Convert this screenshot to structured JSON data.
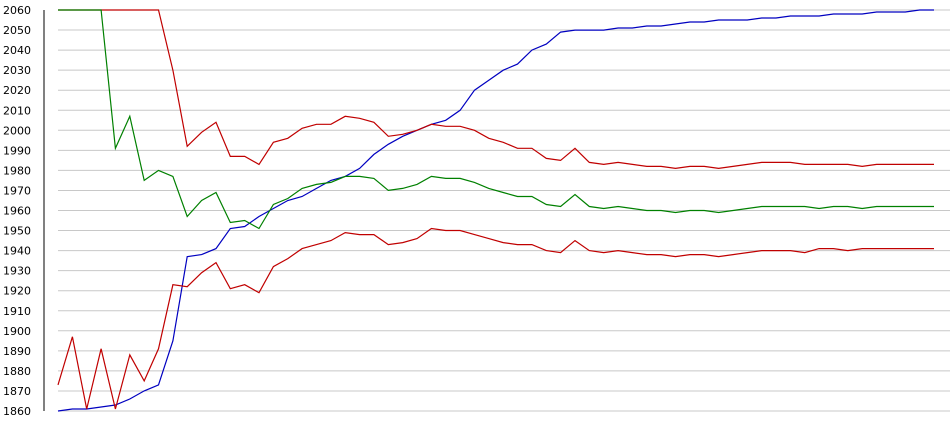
{
  "chart_data": {
    "type": "line",
    "title": "",
    "xlabel": "",
    "ylabel": "",
    "ylim": [
      1860,
      2060
    ],
    "yticks": [
      2060,
      2050,
      2040,
      2030,
      2020,
      2010,
      2000,
      1990,
      1980,
      1970,
      1960,
      1950,
      1940,
      1930,
      1920,
      1910,
      1900,
      1890,
      1880,
      1870,
      1860
    ],
    "grid": true,
    "legend": "none",
    "x": [
      0,
      1,
      2,
      3,
      4,
      5,
      6,
      7,
      8,
      9,
      10,
      11,
      12,
      13,
      14,
      15,
      16,
      17,
      18,
      19,
      20,
      21,
      22,
      23,
      24,
      25,
      26,
      27,
      28,
      29,
      30,
      31,
      32,
      33,
      34,
      35,
      36,
      37,
      38,
      39,
      40,
      41,
      42,
      43,
      44,
      45,
      46,
      47,
      48,
      49,
      50,
      51,
      52,
      53,
      54,
      55,
      56,
      57,
      58,
      59,
      60,
      61
    ],
    "series": [
      {
        "color": "#0000c0",
        "values": [
          1860,
          1861,
          1861,
          1862,
          1863,
          1866,
          1870,
          1873,
          1895,
          1937,
          1938,
          1941,
          1951,
          1952,
          1957,
          1961,
          1965,
          1967,
          1971,
          1975,
          1977,
          1981,
          1988,
          1993,
          1997,
          2000,
          2003,
          2005,
          2010,
          2020,
          2025,
          2030,
          2033,
          2040,
          2043,
          2049,
          2050,
          2050,
          2050,
          2051,
          2051,
          2052,
          2052,
          2053,
          2054,
          2054,
          2055,
          2055,
          2055,
          2056,
          2056,
          2057,
          2057,
          2057,
          2058,
          2058,
          2058,
          2059,
          2059,
          2059,
          2060,
          2060
        ]
      },
      {
        "color": "#c00000",
        "values": [
          2060,
          2060,
          2060,
          2060,
          2060,
          2060,
          2060,
          2060,
          2030,
          1992,
          1999,
          2004,
          1987,
          1987,
          1983,
          1994,
          1996,
          2001,
          2003,
          2003,
          2007,
          2006,
          2004,
          1997,
          1998,
          2000,
          2003,
          2002,
          2002,
          2000,
          1996,
          1994,
          1991,
          1991,
          1986,
          1985,
          1991,
          1984,
          1983,
          1984,
          1983,
          1982,
          1982,
          1981,
          1982,
          1982,
          1981,
          1982,
          1983,
          1984,
          1984,
          1984,
          1983,
          1983,
          1983,
          1983,
          1982,
          1983,
          1983,
          1983,
          1983,
          1983
        ]
      },
      {
        "color": "#008000",
        "values": [
          2060,
          2060,
          2060,
          2060,
          1991,
          2007,
          1975,
          1980,
          1977,
          1957,
          1965,
          1969,
          1954,
          1955,
          1951,
          1963,
          1966,
          1971,
          1973,
          1974,
          1977,
          1977,
          1976,
          1970,
          1971,
          1973,
          1977,
          1976,
          1976,
          1974,
          1971,
          1969,
          1967,
          1967,
          1963,
          1962,
          1968,
          1962,
          1961,
          1962,
          1961,
          1960,
          1960,
          1959,
          1960,
          1960,
          1959,
          1960,
          1961,
          1962,
          1962,
          1962,
          1962,
          1961,
          1962,
          1962,
          1961,
          1962,
          1962,
          1962,
          1962,
          1962
        ]
      },
      {
        "color": "#c00000",
        "values": [
          1873,
          1897,
          1861,
          1891,
          1861,
          1888,
          1875,
          1891,
          1923,
          1922,
          1929,
          1934,
          1921,
          1923,
          1919,
          1932,
          1936,
          1941,
          1943,
          1945,
          1949,
          1948,
          1948,
          1943,
          1944,
          1946,
          1951,
          1950,
          1950,
          1948,
          1946,
          1944,
          1943,
          1943,
          1940,
          1939,
          1945,
          1940,
          1939,
          1940,
          1939,
          1938,
          1938,
          1937,
          1938,
          1938,
          1937,
          1938,
          1939,
          1940,
          1940,
          1940,
          1939,
          1941,
          1941,
          1940,
          1941,
          1941,
          1941,
          1941,
          1941,
          1941
        ]
      }
    ]
  }
}
